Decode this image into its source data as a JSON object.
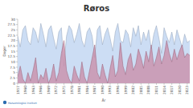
{
  "chart_data": {
    "type": "area",
    "title": "Røros",
    "x_label": "År",
    "y_label": "Dager",
    "source": "Meteorologisk institutt",
    "x": [
      1957,
      1958,
      1959,
      1960,
      1961,
      1962,
      1963,
      1964,
      1965,
      1966,
      1967,
      1968,
      1969,
      1970,
      1971,
      1972,
      1973,
      1974,
      1975,
      1976,
      1977,
      1978,
      1979,
      1980,
      1981,
      1982,
      1983,
      1984,
      1985,
      1986,
      1987,
      1988,
      1989,
      1990,
      1991,
      1992,
      1993,
      1994,
      1995,
      1996,
      1997,
      1998,
      1999,
      2000,
      2001,
      2002,
      2003,
      2004,
      2005,
      2006,
      2007,
      2008,
      2009,
      2010,
      2011,
      2012,
      2013,
      2014,
      2015,
      2016,
      2017,
      2018,
      2019,
      2020,
      2021,
      2022,
      2023,
      2024
    ],
    "series": [
      {
        "color": "#c6d9f3",
        "values": [
          22,
          17,
          25,
          27,
          20,
          18,
          26,
          24,
          19,
          28,
          23,
          17,
          25,
          27,
          21,
          16,
          24,
          26,
          8,
          22,
          27,
          25,
          19,
          23,
          28,
          20,
          17,
          24,
          26,
          22,
          12,
          25,
          27,
          18,
          23,
          26,
          21,
          15,
          24,
          28,
          20,
          19,
          25,
          23,
          17,
          26,
          22,
          27,
          18,
          24,
          20,
          25,
          16,
          23,
          27,
          21,
          14,
          26,
          22,
          19,
          24,
          18,
          25,
          21,
          17,
          23,
          19,
          20
        ]
      },
      {
        "color": "#c98aa6",
        "values": [
          3,
          8,
          2,
          0,
          5,
          1,
          6,
          12,
          0,
          4,
          2,
          7,
          0,
          3,
          9,
          1,
          5,
          14,
          20,
          6,
          2,
          0,
          8,
          4,
          1,
          10,
          3,
          0,
          6,
          12,
          18,
          5,
          2,
          9,
          4,
          0,
          7,
          13,
          3,
          6,
          19,
          8,
          4,
          11,
          14,
          6,
          9,
          16,
          12,
          7,
          15,
          10,
          18,
          8,
          12,
          17,
          9,
          13,
          20,
          14,
          10,
          16,
          11,
          15,
          18,
          12,
          14,
          13
        ]
      }
    ],
    "xlim": [
      1957,
      2024
    ],
    "xticks": [
      1957,
      1960,
      1963,
      1966,
      1969,
      1972,
      1975,
      1978,
      1981,
      1984,
      1987,
      1990,
      1993,
      1996,
      1999,
      2002,
      2005,
      2008,
      2011,
      2014,
      2017,
      2020,
      2023
    ],
    "ylim": [
      0,
      30
    ],
    "yticks": [
      0,
      2.5,
      5,
      7.5,
      10,
      12.5,
      15,
      17.5,
      20,
      22.5,
      25,
      27.5,
      30
    ],
    "grid": false
  }
}
